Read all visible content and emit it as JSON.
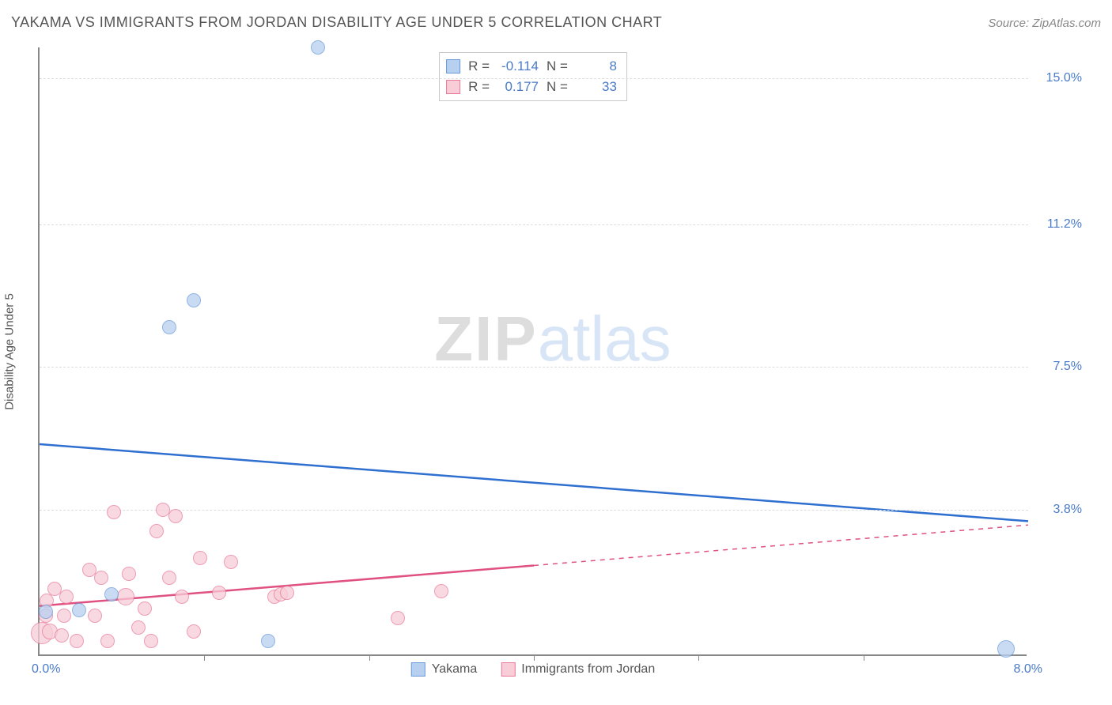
{
  "header": {
    "title": "YAKAMA VS IMMIGRANTS FROM JORDAN DISABILITY AGE UNDER 5 CORRELATION CHART",
    "source_prefix": "Source: ",
    "source_name": "ZipAtlas.com"
  },
  "axes": {
    "ylabel": "Disability Age Under 5",
    "x_min": 0.0,
    "x_max": 8.0,
    "y_min": 0.0,
    "y_max": 15.8,
    "x_tick_labels": {
      "left": "0.0%",
      "right": "8.0%"
    },
    "x_tick_positions": [
      1.33,
      2.67,
      4.0,
      5.33,
      6.67
    ],
    "y_ticks": [
      {
        "v": 3.8,
        "label": "3.8%"
      },
      {
        "v": 7.5,
        "label": "7.5%"
      },
      {
        "v": 11.2,
        "label": "11.2%"
      },
      {
        "v": 15.0,
        "label": "15.0%"
      }
    ]
  },
  "watermark": {
    "part1": "ZIP",
    "part2": "atlas"
  },
  "series": {
    "blue": {
      "name": "Yakama",
      "fill": "#b8d0f0",
      "stroke": "#6a9bd8",
      "line_color": "#2e6fd0",
      "R": "-0.114",
      "N": "8",
      "regression": {
        "x1": 0.0,
        "y1": 5.5,
        "x2": 8.0,
        "y2": 3.5,
        "solid_until": 8.0
      },
      "points": [
        {
          "x": 0.05,
          "y": 1.1,
          "r": 9
        },
        {
          "x": 0.32,
          "y": 1.15,
          "r": 9
        },
        {
          "x": 0.58,
          "y": 1.55,
          "r": 9
        },
        {
          "x": 1.05,
          "y": 8.5,
          "r": 9
        },
        {
          "x": 1.25,
          "y": 9.2,
          "r": 9
        },
        {
          "x": 1.85,
          "y": 0.35,
          "r": 9
        },
        {
          "x": 2.25,
          "y": 15.75,
          "r": 9
        },
        {
          "x": 7.82,
          "y": 0.15,
          "r": 11
        }
      ]
    },
    "pink": {
      "name": "Immigrants from Jordan",
      "fill": "#f8cdd8",
      "stroke": "#e87b9a",
      "line_color": "#e05080",
      "R": "0.177",
      "N": "33",
      "regression": {
        "x1": 0.0,
        "y1": 1.3,
        "x2": 8.0,
        "y2": 3.4,
        "solid_until": 4.0
      },
      "points": [
        {
          "x": 0.02,
          "y": 0.55,
          "r": 14
        },
        {
          "x": 0.05,
          "y": 1.0,
          "r": 9
        },
        {
          "x": 0.06,
          "y": 1.4,
          "r": 9
        },
        {
          "x": 0.08,
          "y": 0.6,
          "r": 10
        },
        {
          "x": 0.12,
          "y": 1.7,
          "r": 9
        },
        {
          "x": 0.18,
          "y": 0.5,
          "r": 9
        },
        {
          "x": 0.2,
          "y": 1.0,
          "r": 9
        },
        {
          "x": 0.22,
          "y": 1.5,
          "r": 9
        },
        {
          "x": 0.3,
          "y": 0.35,
          "r": 9
        },
        {
          "x": 0.4,
          "y": 2.2,
          "r": 9
        },
        {
          "x": 0.45,
          "y": 1.0,
          "r": 9
        },
        {
          "x": 0.5,
          "y": 2.0,
          "r": 9
        },
        {
          "x": 0.55,
          "y": 0.35,
          "r": 9
        },
        {
          "x": 0.6,
          "y": 3.7,
          "r": 9
        },
        {
          "x": 0.7,
          "y": 1.5,
          "r": 11
        },
        {
          "x": 0.72,
          "y": 2.1,
          "r": 9
        },
        {
          "x": 0.8,
          "y": 0.7,
          "r": 9
        },
        {
          "x": 0.85,
          "y": 1.2,
          "r": 9
        },
        {
          "x": 0.9,
          "y": 0.35,
          "r": 9
        },
        {
          "x": 0.95,
          "y": 3.2,
          "r": 9
        },
        {
          "x": 1.0,
          "y": 3.75,
          "r": 9
        },
        {
          "x": 1.05,
          "y": 2.0,
          "r": 9
        },
        {
          "x": 1.1,
          "y": 3.6,
          "r": 9
        },
        {
          "x": 1.15,
          "y": 1.5,
          "r": 9
        },
        {
          "x": 1.25,
          "y": 0.6,
          "r": 9
        },
        {
          "x": 1.3,
          "y": 2.5,
          "r": 9
        },
        {
          "x": 1.45,
          "y": 1.6,
          "r": 9
        },
        {
          "x": 1.55,
          "y": 2.4,
          "r": 9
        },
        {
          "x": 1.9,
          "y": 1.5,
          "r": 9
        },
        {
          "x": 1.95,
          "y": 1.55,
          "r": 9
        },
        {
          "x": 2.0,
          "y": 1.6,
          "r": 9
        },
        {
          "x": 2.9,
          "y": 0.95,
          "r": 9
        },
        {
          "x": 3.25,
          "y": 1.65,
          "r": 9
        }
      ]
    }
  },
  "corr_legend": {
    "R_label": "R  =",
    "N_label": "N  ="
  },
  "style": {
    "title_color": "#555555",
    "tick_label_color": "#4a7bc8",
    "grid_color": "#dddddd",
    "axis_color": "#888888",
    "background": "#ffffff"
  }
}
